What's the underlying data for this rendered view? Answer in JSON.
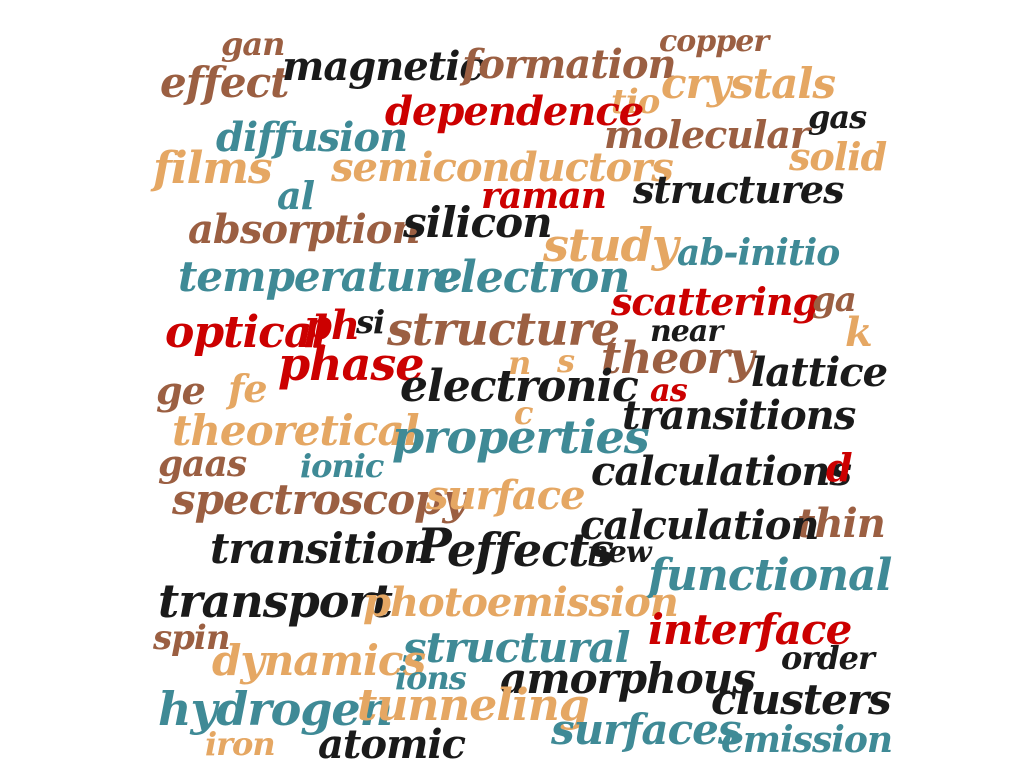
{
  "palette": {
    "brown": "#9b5f42",
    "black": "#1a1a1a",
    "red": "#cc0000",
    "teal": "#3f8a96",
    "tan": "#e5a763"
  },
  "words": [
    {
      "text": "gan",
      "color": "brown"
    },
    {
      "text": "copper",
      "color": "brown"
    },
    {
      "text": "effect",
      "color": "brown"
    },
    {
      "text": "magnetic",
      "color": "black"
    },
    {
      "text": "formation",
      "color": "brown"
    },
    {
      "text": "crystals",
      "color": "tan"
    },
    {
      "text": "tio",
      "color": "tan"
    },
    {
      "text": "dependence",
      "color": "red"
    },
    {
      "text": "diffusion",
      "color": "teal"
    },
    {
      "text": "molecular",
      "color": "brown"
    },
    {
      "text": "gas",
      "color": "black"
    },
    {
      "text": "films",
      "color": "tan"
    },
    {
      "text": "semiconductors",
      "color": "tan"
    },
    {
      "text": "solid",
      "color": "tan"
    },
    {
      "text": "al",
      "color": "teal"
    },
    {
      "text": "raman",
      "color": "red"
    },
    {
      "text": "structures",
      "color": "black"
    },
    {
      "text": "absorption",
      "color": "brown"
    },
    {
      "text": "silicon",
      "color": "black"
    },
    {
      "text": "study",
      "color": "tan"
    },
    {
      "text": "ab-initio",
      "color": "teal"
    },
    {
      "text": "temperature",
      "color": "teal"
    },
    {
      "text": "electron",
      "color": "teal"
    },
    {
      "text": "scattering",
      "color": "red"
    },
    {
      "text": "ga",
      "color": "brown"
    },
    {
      "text": "si",
      "color": "black"
    },
    {
      "text": "optical",
      "color": "red"
    },
    {
      "text": "ph",
      "color": "red"
    },
    {
      "text": "structure",
      "color": "brown"
    },
    {
      "text": "near",
      "color": "black"
    },
    {
      "text": "k",
      "color": "tan"
    },
    {
      "text": "phase",
      "color": "red"
    },
    {
      "text": "n",
      "color": "tan"
    },
    {
      "text": "s",
      "color": "tan"
    },
    {
      "text": "theory",
      "color": "brown"
    },
    {
      "text": "lattice",
      "color": "black"
    },
    {
      "text": "ge",
      "color": "brown"
    },
    {
      "text": "fe",
      "color": "tan"
    },
    {
      "text": "electronic",
      "color": "black"
    },
    {
      "text": "as",
      "color": "red"
    },
    {
      "text": "c",
      "color": "tan"
    },
    {
      "text": "transitions",
      "color": "black"
    },
    {
      "text": "theoretical",
      "color": "tan"
    },
    {
      "text": "properties",
      "color": "teal"
    },
    {
      "text": "gaas",
      "color": "brown"
    },
    {
      "text": "ionic",
      "color": "teal"
    },
    {
      "text": "calculations",
      "color": "black"
    },
    {
      "text": "d",
      "color": "red"
    },
    {
      "text": "spectroscopy",
      "color": "brown"
    },
    {
      "text": "surface",
      "color": "tan"
    },
    {
      "text": "thin",
      "color": "brown"
    },
    {
      "text": "calculation",
      "color": "black"
    },
    {
      "text": "transition",
      "color": "black"
    },
    {
      "text": "P",
      "color": "black"
    },
    {
      "text": "effects",
      "color": "black"
    },
    {
      "text": "new",
      "color": "black"
    },
    {
      "text": "functional",
      "color": "teal"
    },
    {
      "text": "transport",
      "color": "black"
    },
    {
      "text": "photoemission",
      "color": "tan"
    },
    {
      "text": "spin",
      "color": "brown"
    },
    {
      "text": "interface",
      "color": "red"
    },
    {
      "text": "structural",
      "color": "teal"
    },
    {
      "text": "dynamics",
      "color": "tan"
    },
    {
      "text": "order",
      "color": "black"
    },
    {
      "text": "ions",
      "color": "teal"
    },
    {
      "text": "amorphous",
      "color": "black"
    },
    {
      "text": "clusters",
      "color": "black"
    },
    {
      "text": "hydrogen",
      "color": "teal"
    },
    {
      "text": "tunneling",
      "color": "tan"
    },
    {
      "text": "iron",
      "color": "tan"
    },
    {
      "text": "atomic",
      "color": "black"
    },
    {
      "text": "surfaces",
      "color": "teal"
    },
    {
      "text": "emission",
      "color": "teal"
    }
  ]
}
